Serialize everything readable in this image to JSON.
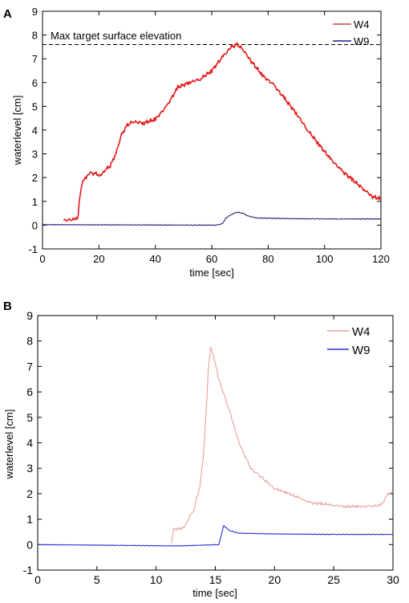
{
  "chart_data": [
    {
      "panel_label": "A",
      "type": "line",
      "xlabel": "time [sec]",
      "ylabel": "waterlevel [cm]",
      "xlim": [
        0,
        120
      ],
      "ylim": [
        -1,
        9
      ],
      "xticks": [
        "0",
        "20",
        "40",
        "60",
        "80",
        "100",
        "120"
      ],
      "yticks": [
        "-1",
        "0",
        "1",
        "2",
        "3",
        "4",
        "5",
        "6",
        "7",
        "8",
        "9"
      ],
      "annotation": "Max target surface elevation",
      "reference_line_y": 7.6,
      "legend_position": "top-right",
      "series": [
        {
          "name": "W4",
          "color": "#e41a1c",
          "points": [
            [
              7.5,
              0.2
            ],
            [
              12,
              0.25
            ],
            [
              12.6,
              0.3
            ],
            [
              13,
              1.0
            ],
            [
              14,
              1.8
            ],
            [
              15.5,
              2.0
            ],
            [
              17,
              2.2
            ],
            [
              19,
              2.15
            ],
            [
              20.5,
              2.1
            ],
            [
              22,
              2.3
            ],
            [
              24,
              2.5
            ],
            [
              26,
              3.0
            ],
            [
              28,
              3.8
            ],
            [
              30,
              4.2
            ],
            [
              32,
              4.35
            ],
            [
              36,
              4.3
            ],
            [
              40,
              4.45
            ],
            [
              44,
              5.0
            ],
            [
              48,
              5.8
            ],
            [
              52,
              6.0
            ],
            [
              56,
              6.15
            ],
            [
              60,
              6.5
            ],
            [
              64,
              7.1
            ],
            [
              67,
              7.5
            ],
            [
              69,
              7.6
            ],
            [
              71,
              7.4
            ],
            [
              74,
              6.9
            ],
            [
              78,
              6.3
            ],
            [
              82,
              5.9
            ],
            [
              86,
              5.3
            ],
            [
              90,
              4.7
            ],
            [
              94,
              4.0
            ],
            [
              98,
              3.4
            ],
            [
              102,
              2.8
            ],
            [
              106,
              2.3
            ],
            [
              110,
              1.9
            ],
            [
              114,
              1.5
            ],
            [
              117,
              1.2
            ],
            [
              120,
              1.1
            ]
          ]
        },
        {
          "name": "W9",
          "color": "#1f1f7a",
          "points": [
            [
              0,
              0.02
            ],
            [
              62,
              0.0
            ],
            [
              64,
              0.08
            ],
            [
              65,
              0.3
            ],
            [
              67,
              0.45
            ],
            [
              69,
              0.55
            ],
            [
              71,
              0.5
            ],
            [
              73,
              0.38
            ],
            [
              76,
              0.3
            ],
            [
              90,
              0.27
            ],
            [
              105,
              0.26
            ],
            [
              120,
              0.26
            ]
          ]
        }
      ]
    },
    {
      "panel_label": "B",
      "type": "line",
      "xlabel": "time [sec]",
      "ylabel": "waterlevel [cm]",
      "xlim": [
        0,
        30
      ],
      "ylim": [
        -1,
        9
      ],
      "xticks": [
        "0",
        "5",
        "10",
        "15",
        "20",
        "25",
        "30"
      ],
      "yticks": [
        "-1",
        "0",
        "1",
        "2",
        "3",
        "4",
        "5",
        "6",
        "7",
        "8",
        "9"
      ],
      "legend_position": "top-right",
      "series": [
        {
          "name": "W4",
          "color": "#e8a098",
          "points": [
            [
              11.3,
              0.05
            ],
            [
              11.5,
              0.6
            ],
            [
              12.3,
              0.65
            ],
            [
              12.6,
              0.9
            ],
            [
              13.2,
              1.4
            ],
            [
              13.7,
              2.3
            ],
            [
              14.0,
              3.5
            ],
            [
              14.2,
              5.0
            ],
            [
              14.4,
              6.8
            ],
            [
              14.6,
              7.8
            ],
            [
              14.9,
              7.3
            ],
            [
              15.3,
              6.5
            ],
            [
              15.8,
              5.8
            ],
            [
              16.3,
              5.1
            ],
            [
              17,
              4.0
            ],
            [
              17.5,
              3.5
            ],
            [
              18,
              3.0
            ],
            [
              18.5,
              2.8
            ],
            [
              19,
              2.6
            ],
            [
              19.5,
              2.4
            ],
            [
              20,
              2.2
            ],
            [
              21,
              2.05
            ],
            [
              22,
              1.85
            ],
            [
              23,
              1.65
            ],
            [
              24,
              1.6
            ],
            [
              25,
              1.55
            ],
            [
              26,
              1.5
            ],
            [
              27,
              1.5
            ],
            [
              28,
              1.5
            ],
            [
              29,
              1.55
            ],
            [
              29.6,
              2.0
            ],
            [
              30,
              2.05
            ]
          ]
        },
        {
          "name": "W9",
          "color": "#2a2adc",
          "points": [
            [
              0,
              0.0
            ],
            [
              12,
              -0.05
            ],
            [
              15.3,
              0.0
            ],
            [
              15.7,
              0.75
            ],
            [
              16.2,
              0.55
            ],
            [
              17,
              0.45
            ],
            [
              20,
              0.42
            ],
            [
              25,
              0.4
            ],
            [
              30,
              0.4
            ]
          ]
        }
      ]
    }
  ]
}
